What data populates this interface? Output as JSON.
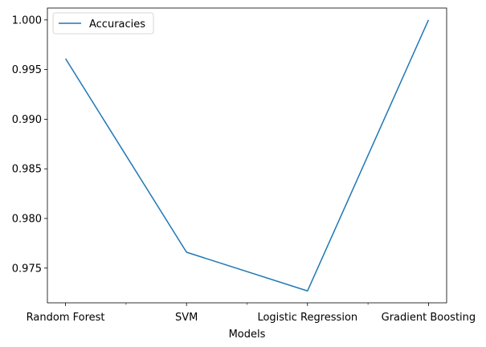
{
  "chart_data": {
    "type": "line",
    "categories": [
      "Random Forest",
      "SVM",
      "Logistic Regression",
      "Gradient Boosting"
    ],
    "series": [
      {
        "name": "Accuracies",
        "values": [
          0.9961,
          0.9766,
          0.9727,
          1.0
        ],
        "color": "#1f77b4"
      }
    ],
    "title": "",
    "xlabel": "Models",
    "ylabel": "",
    "ylim": [
      0.9715,
      1.0012
    ],
    "yticks": [
      0.975,
      0.98,
      0.985,
      0.99,
      0.995,
      1.0
    ],
    "ytick_labels": [
      "0.975",
      "0.980",
      "0.985",
      "0.990",
      "0.995",
      "1.000"
    ],
    "grid": false,
    "legend_position": "upper-left"
  }
}
